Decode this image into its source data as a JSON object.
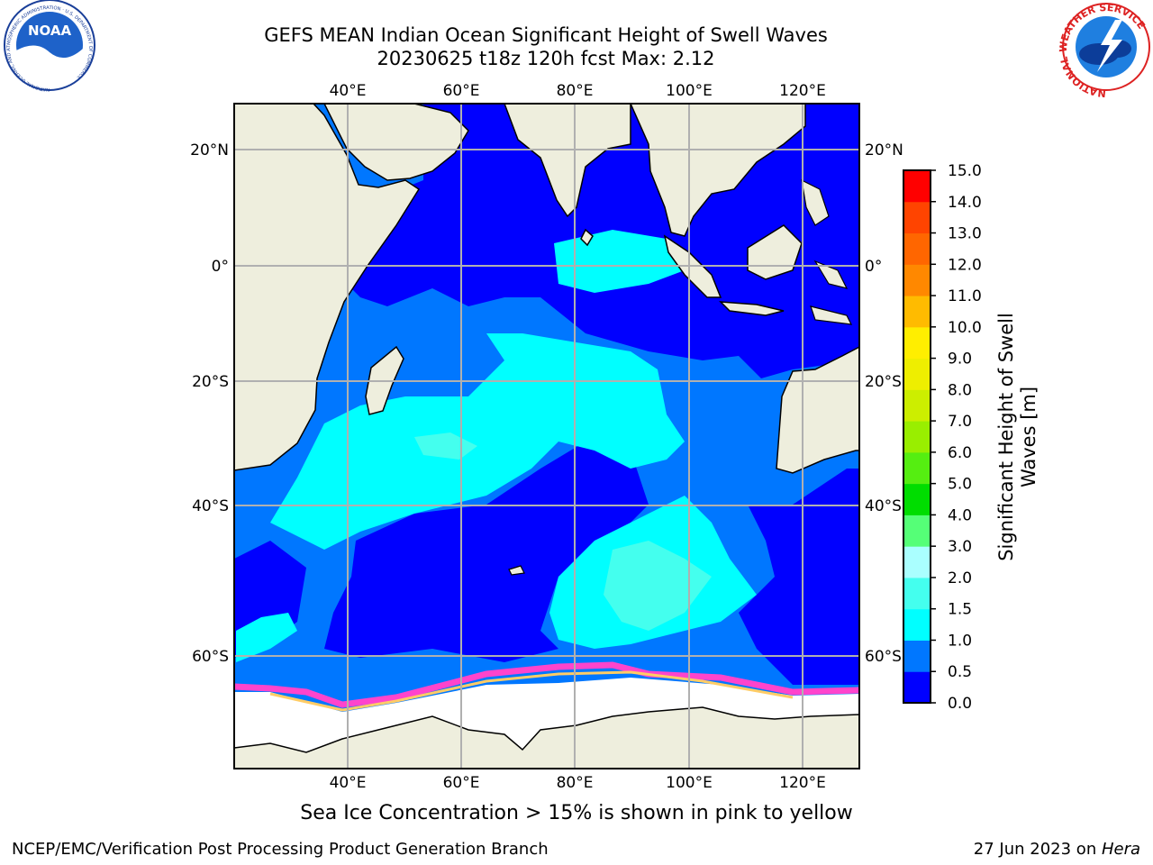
{
  "title_line1": "GEFS MEAN Indian Ocean Significant Height of Swell Waves",
  "title_line2": "20230625 t18z 120h fcst   Max: 2.12",
  "caption": "Sea Ice Concentration > 15% is shown in pink to yellow",
  "footer_left": "NCEP/EMC/Verification Post Processing Product Generation Branch",
  "footer_date": "27 Jun 2023 on ",
  "footer_host": "Hera",
  "logos": {
    "noaa": {
      "text": "NOAA",
      "ring_text": "NATIONAL OCEANIC AND ATMOSPHERIC ADMINISTRATION · U.S. DEPARTMENT OF COMMERCE",
      "icon": "noaa-logo"
    },
    "nws": {
      "ring_text": "NATIONAL WEATHER SERVICE",
      "icon": "nws-logo"
    }
  },
  "map": {
    "lon_ticks": [
      "40°E",
      "60°E",
      "80°E",
      "100°E",
      "120°E"
    ],
    "lon_values": [
      40,
      60,
      80,
      100,
      120
    ],
    "lat_ticks": [
      "20°N",
      "0°",
      "20°S",
      "40°S",
      "60°S"
    ],
    "lat_values": [
      20,
      0,
      -20,
      -40,
      -60
    ],
    "extent": {
      "lon_min": 20,
      "lon_max": 130,
      "lat_min": -68,
      "lat_max": 28
    },
    "colors": {
      "land": "#eeeedd",
      "ice": "#ffffff",
      "grid": "#b0b0b0"
    }
  },
  "colorbar": {
    "label_line1": "Significant Height of Swell",
    "label_line2": "Waves [m]",
    "ticks": [
      "0.0",
      "0.5",
      "1.0",
      "1.5",
      "2.0",
      "3.0",
      "4.0",
      "5.0",
      "6.0",
      "7.0",
      "8.0",
      "9.0",
      "10.0",
      "11.0",
      "12.0",
      "13.0",
      "14.0",
      "15.0"
    ],
    "colors": [
      "#0000ff",
      "#0077ff",
      "#00ffff",
      "#44ffee",
      "#aaffff",
      "#55ff77",
      "#00dd00",
      "#55ee11",
      "#99ee00",
      "#ccee00",
      "#eeee00",
      "#ffee00",
      "#ffbb00",
      "#ff8800",
      "#ff6600",
      "#ff4400",
      "#ff0000"
    ]
  }
}
